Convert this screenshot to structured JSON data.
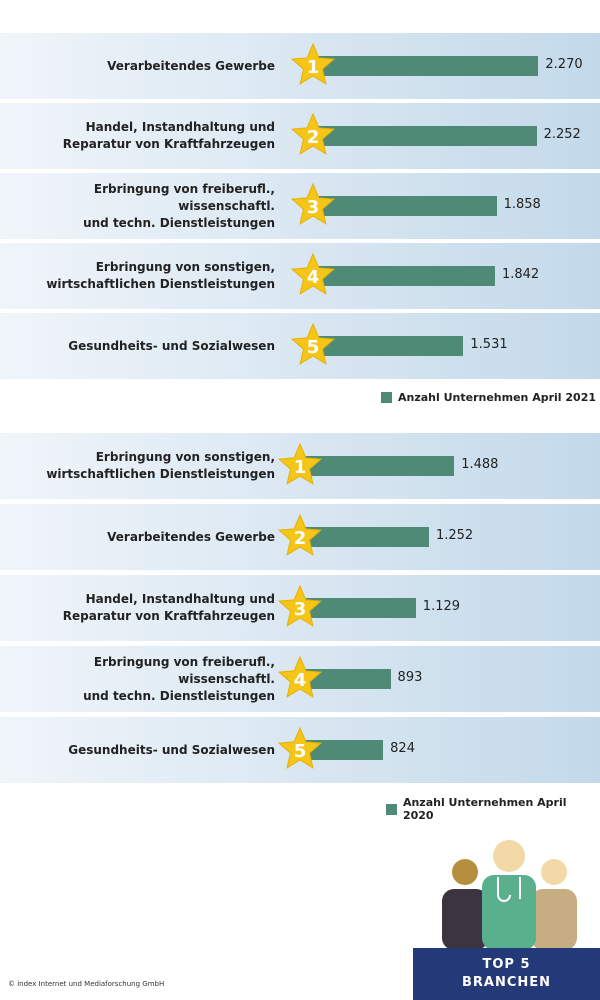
{
  "chart_data": [
    {
      "type": "bar",
      "categories": [
        "Verarbeitendes Gewerbe",
        "Handel, Instandhaltung und\nReparatur von Kraftfahrzeugen",
        "Erbringung von freiberufl., wissenschaftl.\nund techn. Dienstleistungen",
        "Erbringung von sonstigen,\nwirtschaftlichen Dienstleistungen",
        "Gesundheits- und Sozialwesen"
      ],
      "ranks": [
        1,
        2,
        3,
        4,
        5
      ],
      "series": [
        {
          "name": "Anzahl Unternehmen April 2021",
          "color": "#4e8a76",
          "values": [
            2270,
            2252,
            1858,
            1842,
            1531
          ],
          "value_labels": [
            "2.270",
            "2.252",
            "1.858",
            "1.842",
            "1.531"
          ]
        }
      ]
    },
    {
      "type": "bar",
      "categories": [
        "Erbringung von sonstigen,\nwirtschaftlichen Dienstleistungen",
        "Verarbeitendes Gewerbe",
        "Handel, Instandhaltung und\nReparatur von Kraftfahrzeugen",
        "Erbringung von freiberufl., wissenschaftl.\nund techn. Dienstleistungen",
        "Gesundheits- und Sozialwesen"
      ],
      "ranks": [
        1,
        2,
        3,
        4,
        5
      ],
      "series": [
        {
          "name": "Anzahl Unternehmen April 2020",
          "color": "#4e8a76",
          "values": [
            1488,
            1252,
            1129,
            893,
            824
          ],
          "value_labels": [
            "1.488",
            "1.252",
            "1.129",
            "893",
            "824"
          ]
        }
      ]
    }
  ],
  "footer": {
    "copyright": "© index Internet und Mediaforschung GmbH",
    "badge_line1": "TOP 5",
    "badge_line2": "BRANCHEN"
  }
}
